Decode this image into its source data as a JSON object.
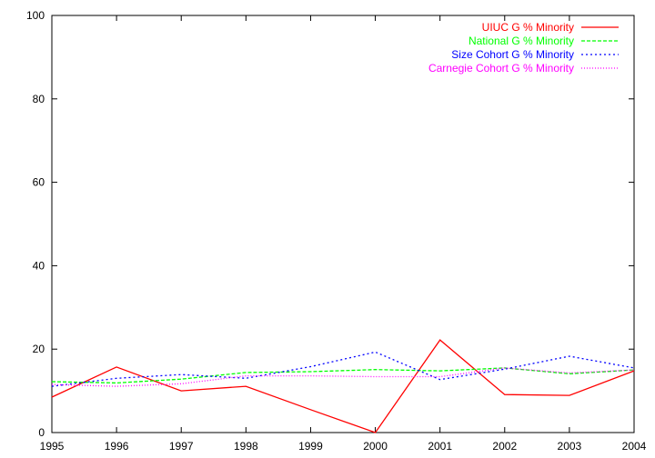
{
  "chart_data": {
    "type": "line",
    "title": "",
    "xlabel": "",
    "ylabel": "",
    "x": [
      1995,
      1996,
      1997,
      1998,
      1999,
      2000,
      2001,
      2002,
      2003,
      2004
    ],
    "x_ticks": [
      "1995",
      "1996",
      "1997",
      "1998",
      "1999",
      "2000",
      "2001",
      "2002",
      "2003",
      "2004"
    ],
    "y_ticks": [
      "0",
      "20",
      "40",
      "60",
      "80",
      "100"
    ],
    "xlim": [
      1995,
      2004
    ],
    "ylim": [
      0,
      100
    ],
    "grid": false,
    "legend_position": "top-right",
    "series": [
      {
        "name": "UIUC G % Minority",
        "color": "#ff0000",
        "dash": "solid",
        "values": [
          8.5,
          15.7,
          10.0,
          11.1,
          5.5,
          0.0,
          22.2,
          9.1,
          8.9,
          14.8
        ]
      },
      {
        "name": "National G % Minority",
        "color": "#00ff00",
        "dash": "dashed",
        "values": [
          12.2,
          11.9,
          12.8,
          14.4,
          14.6,
          15.1,
          14.8,
          15.5,
          14.1,
          15.0
        ]
      },
      {
        "name": "Size Cohort G % Minority",
        "color": "#0000ff",
        "dash": "dotted",
        "values": [
          11.1,
          13.0,
          13.9,
          13.0,
          15.8,
          19.3,
          12.7,
          15.2,
          18.3,
          15.5
        ]
      },
      {
        "name": "Carnegie Cohort G % Minority",
        "color": "#ff00ff",
        "dash": "fine-dotted",
        "values": [
          11.5,
          11.1,
          11.7,
          13.6,
          13.6,
          13.4,
          13.4,
          15.5,
          14.3,
          15.0
        ]
      }
    ]
  }
}
